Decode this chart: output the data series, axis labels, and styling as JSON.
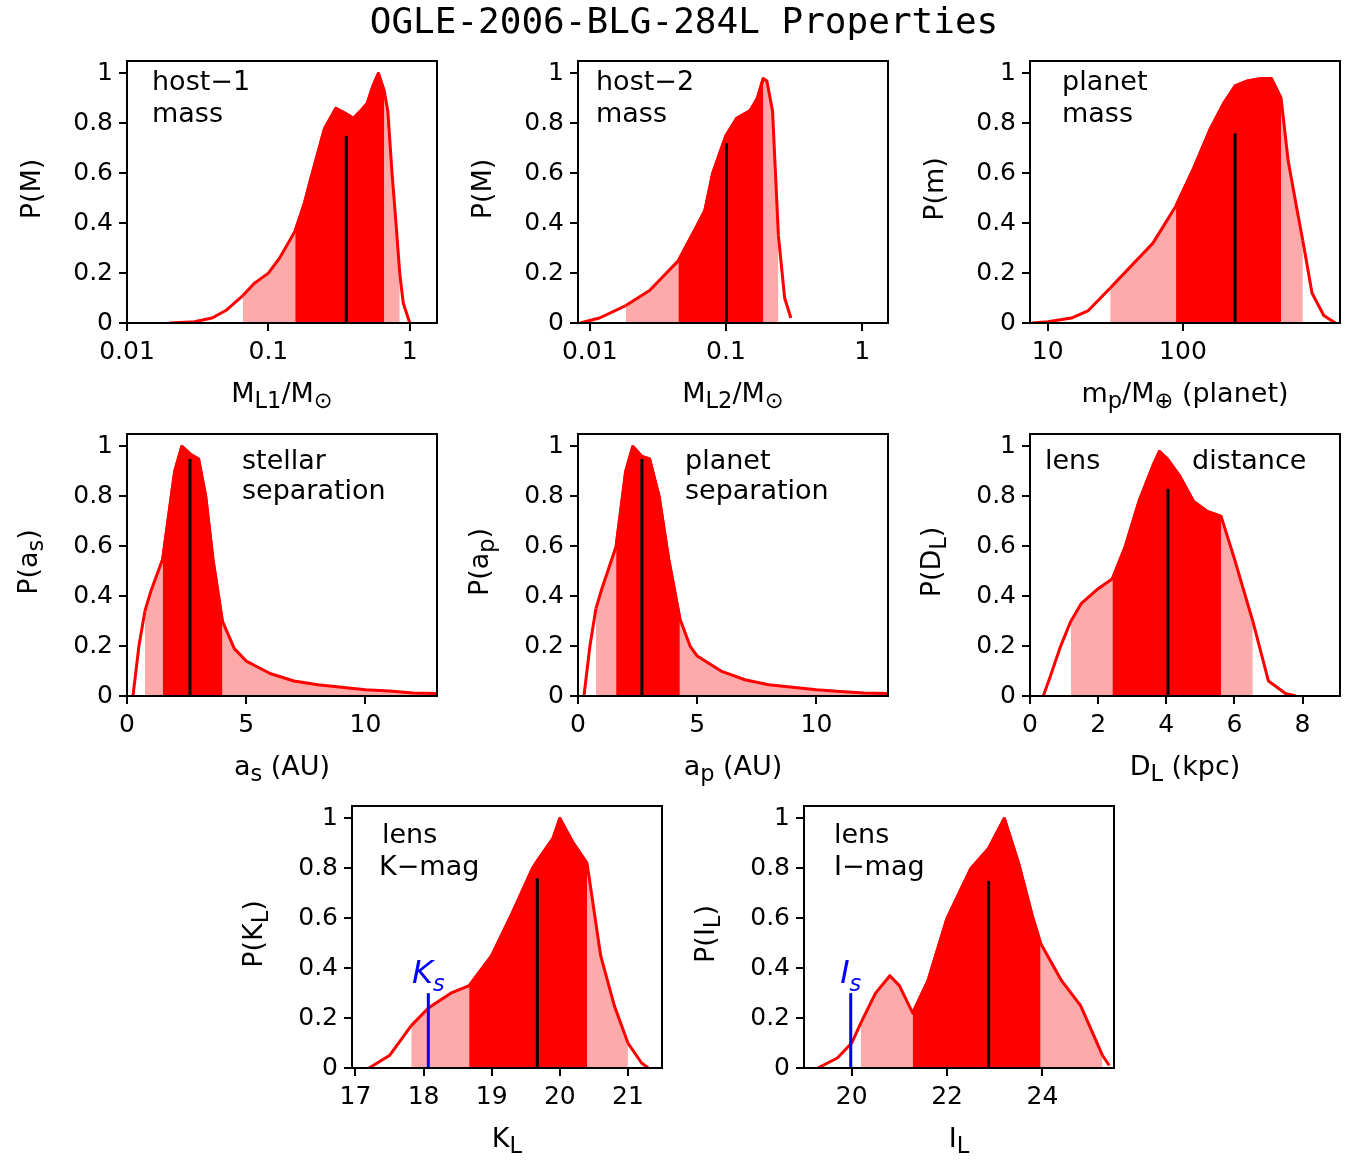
{
  "chart_data": [
    {
      "type": "line",
      "title": "OGLE-2006-BLG-284L Properties",
      "xlabel": "M$_{L1}$/M$_{⊙}$",
      "ylabel": "P(M)",
      "log": "x",
      "xlim": [
        0.01,
        1.56
      ],
      "xticks": [
        0.01,
        0.1,
        1
      ],
      "ylim": [
        0,
        1.05
      ],
      "yticks": [
        0,
        0.2,
        0.4,
        0.6,
        0.8,
        1
      ],
      "annotations": [
        "host−1",
        "mass"
      ],
      "series": [
        {
          "type": "area",
          "color": "#ffaaaa",
          "x": [
            0.066,
            0.08,
            0.1,
            0.12,
            0.155,
            0.18,
            0.2,
            0.25,
            0.3,
            0.35,
            0.4,
            0.45,
            0.5,
            0.55,
            0.6,
            0.66,
            0.7,
            0.75,
            0.8,
            0.85
          ],
          "values": [
            0.11,
            0.16,
            0.2,
            0.26,
            0.37,
            0.48,
            0.58,
            0.78,
            0.86,
            0.84,
            0.82,
            0.85,
            0.88,
            0.95,
            1.0,
            0.93,
            0.85,
            0.6,
            0.4,
            0.2
          ]
        },
        {
          "type": "area",
          "color": "#ff0000",
          "x": [
            0.155,
            0.18,
            0.2,
            0.25,
            0.3,
            0.35,
            0.4,
            0.45,
            0.5,
            0.55,
            0.6,
            0.66
          ],
          "values": [
            0.37,
            0.48,
            0.58,
            0.78,
            0.86,
            0.84,
            0.82,
            0.85,
            0.88,
            0.95,
            1.0,
            0.93
          ]
        },
        {
          "type": "line",
          "color": "#ff0000",
          "x": [
            0.02,
            0.03,
            0.04,
            0.05,
            0.066
          ],
          "values": [
            0,
            0.005,
            0.02,
            0.05,
            0.11
          ]
        },
        {
          "type": "line",
          "color": "#ff0000",
          "x": [
            0.85,
            0.9,
            1.0
          ],
          "values": [
            0.2,
            0.08,
            0
          ]
        },
        {
          "type": "line",
          "color": "#000000",
          "x": [
            0.356,
            0.356
          ],
          "values": [
            0,
            0.75
          ]
        }
      ]
    },
    {
      "type": "line",
      "xlabel": "M$_{L2}$/M$_{⊙}$",
      "ylabel": "P(M)",
      "log": "x",
      "xlim": [
        0.0082,
        1.55
      ],
      "xticks": [
        0.01,
        0.1,
        1
      ],
      "ylim": [
        0,
        1.05
      ],
      "yticks": [
        0,
        0.2,
        0.4,
        0.6,
        0.8,
        1
      ],
      "annotations": [
        "host−2",
        "mass"
      ],
      "series": [
        {
          "type": "area",
          "color": "#ffaaaa",
          "x": [
            0.0184,
            0.0275,
            0.0448,
            0.06,
            0.07,
            0.08,
            0.1,
            0.12,
            0.15,
            0.17,
            0.188,
            0.2,
            0.22,
            0.243
          ],
          "values": [
            0.07,
            0.13,
            0.25,
            0.38,
            0.45,
            0.6,
            0.75,
            0.82,
            0.85,
            0.9,
            0.98,
            0.97,
            0.85,
            0.35
          ]
        },
        {
          "type": "area",
          "color": "#ff0000",
          "x": [
            0.0448,
            0.06,
            0.07,
            0.08,
            0.1,
            0.12,
            0.15,
            0.17,
            0.188
          ],
          "values": [
            0.25,
            0.38,
            0.45,
            0.6,
            0.75,
            0.82,
            0.85,
            0.9,
            0.98
          ]
        },
        {
          "type": "line",
          "color": "#ff0000",
          "x": [
            0.0085,
            0.0118,
            0.0184
          ],
          "values": [
            0,
            0.02,
            0.07
          ]
        },
        {
          "type": "line",
          "color": "#ff0000",
          "x": [
            0.243,
            0.27,
            0.3
          ],
          "values": [
            0.35,
            0.1,
            0.02
          ]
        },
        {
          "type": "line",
          "color": "#000000",
          "x": [
            0.101,
            0.101
          ],
          "values": [
            0,
            0.72
          ]
        }
      ]
    },
    {
      "type": "line",
      "xlabel": "m$_{p}$/M$_{⊕}$ (planet)",
      "ylabel": "P(m)",
      "log": "x",
      "xlim": [
        7.4,
        1450
      ],
      "xticks": [
        10,
        100
      ],
      "ylim": [
        0,
        1.05
      ],
      "yticks": [
        0,
        0.2,
        0.4,
        0.6,
        0.8,
        1
      ],
      "annotations": [
        "planet",
        "mass"
      ],
      "series": [
        {
          "type": "area",
          "color": "#ffaaaa",
          "x": [
            29,
            40,
            60,
            89,
            120,
            160,
            200,
            243,
            300,
            380,
            450,
            532,
            600,
            700,
            770
          ],
          "values": [
            0.14,
            0.22,
            0.32,
            0.47,
            0.62,
            0.78,
            0.88,
            0.95,
            0.97,
            0.98,
            0.98,
            0.9,
            0.65,
            0.45,
            0.33
          ]
        },
        {
          "type": "area",
          "color": "#ff0000",
          "x": [
            89,
            120,
            160,
            200,
            243,
            300,
            380,
            450,
            532
          ],
          "values": [
            0.47,
            0.62,
            0.78,
            0.88,
            0.95,
            0.97,
            0.98,
            0.98,
            0.9
          ]
        },
        {
          "type": "line",
          "color": "#ff0000",
          "x": [
            7.7,
            10,
            15,
            20,
            29
          ],
          "values": [
            0,
            0.005,
            0.02,
            0.05,
            0.14
          ]
        },
        {
          "type": "line",
          "color": "#ff0000",
          "x": [
            770,
            900,
            1100,
            1340
          ],
          "values": [
            0.33,
            0.12,
            0.03,
            0
          ]
        },
        {
          "type": "line",
          "color": "#000000",
          "x": [
            243,
            243
          ],
          "values": [
            0,
            0.76
          ]
        }
      ]
    },
    {
      "type": "line",
      "xlabel": "a$_{s}$ (AU)",
      "ylabel": "P(a$_{s}$)",
      "xlim": [
        0,
        13
      ],
      "xticks": [
        0,
        5,
        10
      ],
      "ylim": [
        0,
        1.05
      ],
      "yticks": [
        0,
        0.2,
        0.4,
        0.6,
        0.8,
        1
      ],
      "annotations": [
        "stellar",
        "separation"
      ],
      "series": [
        {
          "type": "area",
          "color": "#ffaaaa",
          "x": [
            0.75,
            1.0,
            1.5,
            2.0,
            2.3,
            2.64,
            3.0,
            3.3,
            3.6,
            4.0,
            4.5,
            5,
            6,
            7,
            8,
            9,
            10,
            11,
            12,
            13
          ],
          "values": [
            0.34,
            0.42,
            0.55,
            0.9,
            1.0,
            0.97,
            0.95,
            0.8,
            0.55,
            0.3,
            0.19,
            0.14,
            0.09,
            0.06,
            0.045,
            0.035,
            0.025,
            0.02,
            0.012,
            0.01
          ]
        },
        {
          "type": "area",
          "color": "#ff0000",
          "x": [
            1.5,
            2.0,
            2.3,
            2.64,
            3.0,
            3.3,
            3.6,
            4.0
          ],
          "values": [
            0.55,
            0.9,
            1.0,
            0.97,
            0.95,
            0.8,
            0.55,
            0.3
          ]
        },
        {
          "type": "line",
          "color": "#ff0000",
          "x": [
            0.25,
            0.5,
            0.75
          ],
          "values": [
            0,
            0.2,
            0.34
          ]
        },
        {
          "type": "line",
          "color": "#000000",
          "x": [
            2.64,
            2.64
          ],
          "values": [
            0,
            0.95
          ]
        }
      ]
    },
    {
      "type": "line",
      "xlabel": "a$_{p}$ (AU)",
      "ylabel": "P(a$_{p}$)",
      "xlim": [
        0,
        13
      ],
      "xticks": [
        0,
        5,
        10
      ],
      "ylim": [
        0,
        1.05
      ],
      "yticks": [
        0,
        0.2,
        0.4,
        0.6,
        0.8,
        1
      ],
      "annotations": [
        "planet",
        "separation"
      ],
      "series": [
        {
          "type": "area",
          "color": "#ffaaaa",
          "x": [
            0.75,
            1.0,
            1.6,
            2.0,
            2.3,
            2.68,
            3.0,
            3.4,
            3.8,
            4.27,
            4.7,
            5,
            6,
            7,
            8,
            9,
            10,
            11,
            12,
            13
          ],
          "values": [
            0.35,
            0.43,
            0.6,
            0.9,
            1.0,
            0.96,
            0.95,
            0.8,
            0.55,
            0.31,
            0.2,
            0.16,
            0.1,
            0.065,
            0.045,
            0.035,
            0.025,
            0.018,
            0.012,
            0.01
          ]
        },
        {
          "type": "area",
          "color": "#ff0000",
          "x": [
            1.6,
            2.0,
            2.3,
            2.68,
            3.0,
            3.4,
            3.8,
            4.27
          ],
          "values": [
            0.6,
            0.9,
            1.0,
            0.96,
            0.95,
            0.8,
            0.55,
            0.31
          ]
        },
        {
          "type": "line",
          "color": "#ff0000",
          "x": [
            0.25,
            0.5,
            0.75
          ],
          "values": [
            0,
            0.2,
            0.35
          ]
        },
        {
          "type": "line",
          "color": "#000000",
          "x": [
            2.68,
            2.68
          ],
          "values": [
            0,
            0.95
          ]
        }
      ]
    },
    {
      "type": "line",
      "xlabel": "D$_{L}$ (kpc)",
      "ylabel": "P(D$_{L}$)",
      "xlim": [
        0,
        9.1
      ],
      "xticks": [
        0,
        2,
        4,
        6,
        8
      ],
      "ylim": [
        0,
        1.05
      ],
      "yticks": [
        0,
        0.2,
        0.4,
        0.6,
        0.8,
        1
      ],
      "annotations": [
        "lens",
        "distance"
      ],
      "series": [
        {
          "type": "area",
          "color": "#ffaaaa",
          "x": [
            1.2,
            1.5,
            2.0,
            2.42,
            2.8,
            3.2,
            3.6,
            3.8,
            4.03,
            4.4,
            4.8,
            5.2,
            5.61,
            6.0,
            6.54
          ],
          "values": [
            0.3,
            0.37,
            0.43,
            0.47,
            0.6,
            0.78,
            0.92,
            0.98,
            0.95,
            0.88,
            0.78,
            0.74,
            0.72,
            0.55,
            0.3
          ]
        },
        {
          "type": "area",
          "color": "#ff0000",
          "x": [
            2.42,
            2.8,
            3.2,
            3.6,
            3.8,
            4.03,
            4.4,
            4.8,
            5.2,
            5.61
          ],
          "values": [
            0.47,
            0.6,
            0.78,
            0.92,
            0.98,
            0.95,
            0.88,
            0.78,
            0.74,
            0.72
          ]
        },
        {
          "type": "line",
          "color": "#ff0000",
          "x": [
            0.39,
            0.6,
            0.9,
            1.2
          ],
          "values": [
            0,
            0.08,
            0.2,
            0.3
          ]
        },
        {
          "type": "line",
          "color": "#ff0000",
          "x": [
            6.54,
            7.0,
            7.5,
            7.8
          ],
          "values": [
            0.3,
            0.06,
            0.01,
            0
          ]
        },
        {
          "type": "line",
          "color": "#000000",
          "x": [
            4.05,
            4.05
          ],
          "values": [
            0,
            0.83
          ]
        }
      ]
    },
    {
      "type": "line",
      "xlabel": "K$_{L}$",
      "ylabel": "P(K$_{L}$)",
      "xlim": [
        16.95,
        21.5
      ],
      "xticks": [
        17,
        18,
        19,
        20,
        21
      ],
      "ylim": [
        0,
        1.05
      ],
      "yticks": [
        0,
        0.2,
        0.4,
        0.6,
        0.8,
        1
      ],
      "annotations": [
        "lens",
        "K−mag",
        {
          "text": "K$_{s}$",
          "x": 18.07,
          "y": 0.3
        }
      ],
      "series": [
        {
          "type": "area",
          "color": "#ffaaaa",
          "x": [
            17.82,
            18.07,
            18.4,
            18.67,
            19.0,
            19.3,
            19.6,
            19.67,
            19.9,
            20.0,
            20.2,
            20.4,
            20.6,
            20.8,
            21.0
          ],
          "values": [
            0.17,
            0.24,
            0.3,
            0.33,
            0.45,
            0.62,
            0.8,
            0.83,
            0.92,
            1.0,
            0.9,
            0.82,
            0.45,
            0.25,
            0.1
          ]
        },
        {
          "type": "area",
          "color": "#ff0000",
          "x": [
            18.67,
            19.0,
            19.3,
            19.6,
            19.67,
            19.9,
            20.0,
            20.2,
            20.4
          ],
          "values": [
            0.33,
            0.45,
            0.62,
            0.8,
            0.83,
            0.92,
            1.0,
            0.9,
            0.82
          ]
        },
        {
          "type": "line",
          "color": "#ff0000",
          "x": [
            17.2,
            17.5,
            17.82
          ],
          "values": [
            0,
            0.05,
            0.17
          ]
        },
        {
          "type": "line",
          "color": "#ff0000",
          "x": [
            21.0,
            21.2,
            21.3
          ],
          "values": [
            0.1,
            0.02,
            0
          ]
        },
        {
          "type": "line",
          "color": "#000000",
          "x": [
            19.67,
            19.67
          ],
          "values": [
            0,
            0.76
          ]
        },
        {
          "type": "line",
          "color": "#0000ff",
          "x": [
            18.07,
            18.07
          ],
          "values": [
            0,
            0.3
          ]
        }
      ]
    },
    {
      "type": "line",
      "xlabel": "I$_{L}$",
      "ylabel": "P(I$_{L}$)",
      "xlim": [
        19,
        25.5
      ],
      "xticks": [
        20,
        22,
        24
      ],
      "ylim": [
        0,
        1.05
      ],
      "yticks": [
        0,
        0.2,
        0.4,
        0.6,
        0.8,
        1
      ],
      "annotations": [
        "lens",
        "I−mag",
        {
          "text": "I$_{s}$",
          "x": 19.98,
          "y": 0.3
        }
      ],
      "series": [
        {
          "type": "area",
          "color": "#ffaaaa",
          "x": [
            20.19,
            20.5,
            20.8,
            21.0,
            21.28,
            21.6,
            22.0,
            22.5,
            22.87,
            23.2,
            23.5,
            23.8,
            23.96,
            24.4,
            24.8,
            25.26
          ],
          "values": [
            0.18,
            0.3,
            0.37,
            0.33,
            0.22,
            0.35,
            0.6,
            0.8,
            0.88,
            1.0,
            0.82,
            0.6,
            0.5,
            0.35,
            0.25,
            0.05
          ]
        },
        {
          "type": "area",
          "color": "#ff0000",
          "x": [
            21.28,
            21.6,
            22.0,
            22.5,
            22.87,
            23.2,
            23.5,
            23.8,
            23.96
          ],
          "values": [
            0.22,
            0.35,
            0.6,
            0.8,
            0.88,
            1.0,
            0.82,
            0.6,
            0.5
          ]
        },
        {
          "type": "line",
          "color": "#ff0000",
          "x": [
            19.29,
            19.7,
            20.0,
            20.19
          ],
          "values": [
            0,
            0.04,
            0.1,
            0.18
          ]
        },
        {
          "type": "line",
          "color": "#ff0000",
          "x": [
            25.26,
            25.4
          ],
          "values": [
            0.05,
            0.01
          ]
        },
        {
          "type": "line",
          "color": "#000000",
          "x": [
            22.87,
            22.87
          ],
          "values": [
            0,
            0.75
          ]
        },
        {
          "type": "line",
          "color": "#0000ff",
          "x": [
            19.98,
            19.98
          ],
          "values": [
            0,
            0.3
          ]
        }
      ]
    }
  ]
}
